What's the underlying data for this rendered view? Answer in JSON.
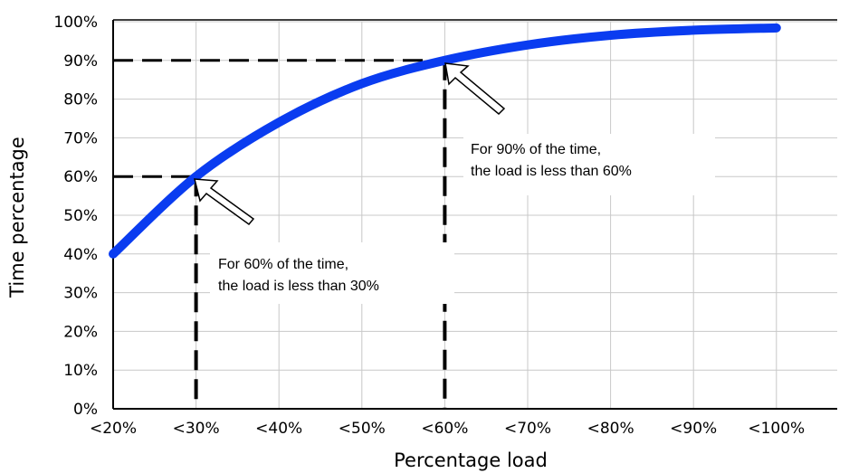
{
  "chart_data": {
    "type": "line",
    "xlabel": "Percentage load",
    "ylabel": "Time percentage",
    "categories": [
      "<20%",
      "<30%",
      "<40%",
      "<50%",
      "<60%",
      "<70%",
      "<80%",
      "<90%",
      "<100%"
    ],
    "y_ticks": [
      "0%",
      "10%",
      "20%",
      "30%",
      "40%",
      "50%",
      "60%",
      "70%",
      "80%",
      "90%",
      "100%"
    ],
    "ylim": [
      0,
      100
    ],
    "grid": true,
    "series": [
      {
        "values": [
          40,
          60,
          74,
          84,
          90,
          94,
          96.5,
          97.8,
          98.4
        ],
        "color": "#0a3cf0"
      }
    ],
    "reference_lines": [
      {
        "category": "<30%",
        "value": 60
      },
      {
        "category": "<60%",
        "value": 90
      }
    ],
    "annotations": [
      {
        "lines": [
          "For 60% of the time,",
          "the load is less than 30%"
        ]
      },
      {
        "lines": [
          "For 90% of the time,",
          "the load is less than 60%"
        ]
      }
    ]
  }
}
